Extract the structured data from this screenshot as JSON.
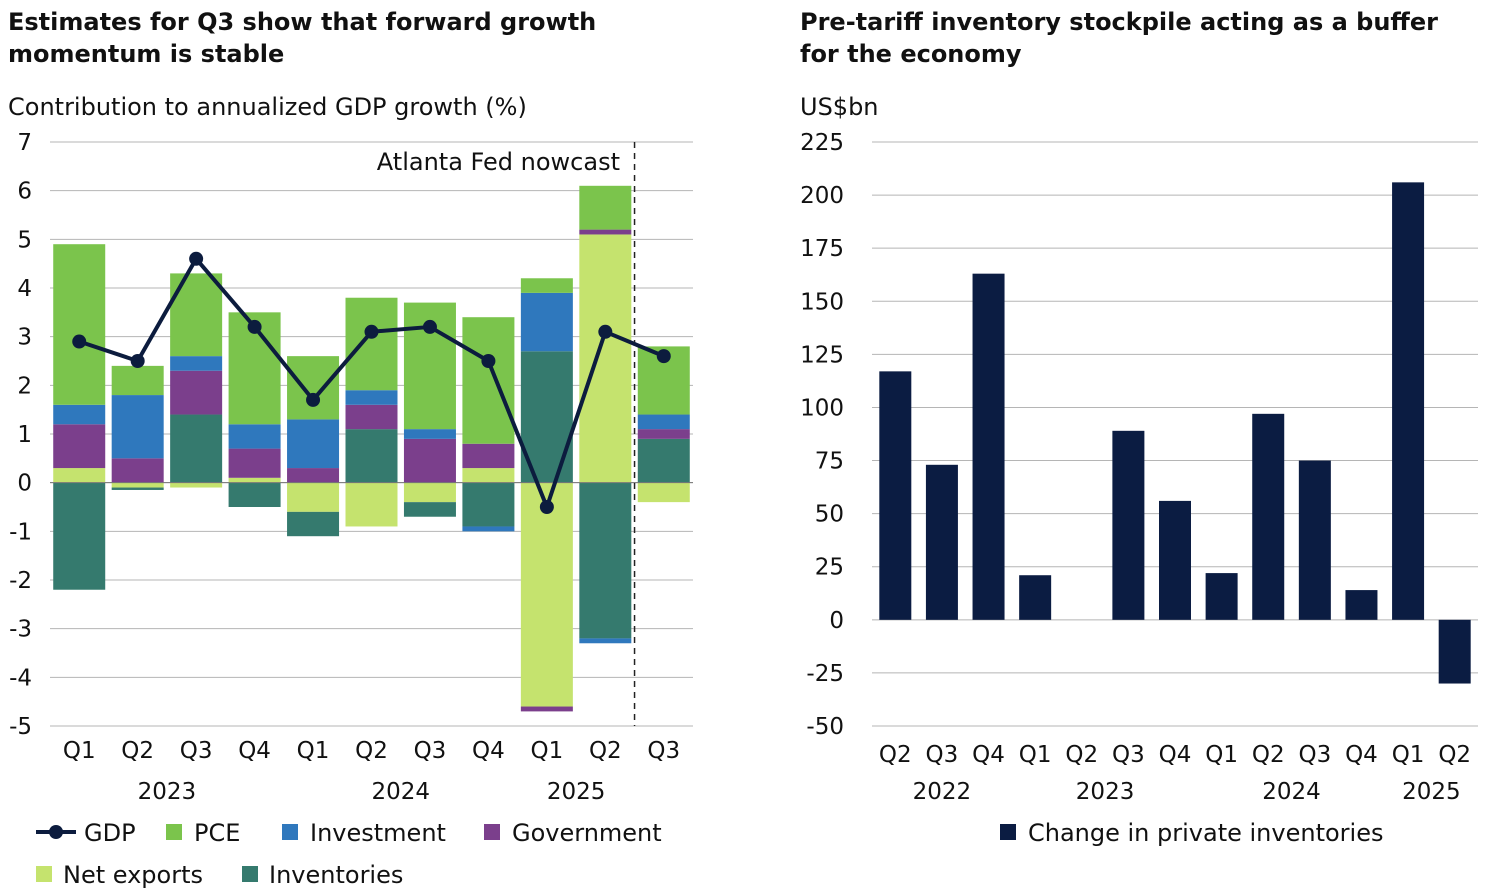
{
  "chart_data": [
    {
      "type": "bar",
      "stacked": true,
      "title": "Estimates for Q3 show that forward growth momentum is stable",
      "title_lines": [
        "Estimates for Q3 show that forward growth",
        "momentum is stable"
      ],
      "ylabel": "Contribution to annualized GDP growth (%)",
      "ylim": [
        -5,
        7
      ],
      "yticks": [
        7,
        6,
        5,
        4,
        3,
        2,
        1,
        0,
        -1,
        -2,
        -3,
        -4,
        -5
      ],
      "categories": [
        "Q1",
        "Q2",
        "Q3",
        "Q4",
        "Q1",
        "Q2",
        "Q3",
        "Q4",
        "Q1",
        "Q2",
        "Q3"
      ],
      "year_labels": [
        {
          "label": "2023",
          "start": 0,
          "end": 3
        },
        {
          "label": "2024",
          "start": 4,
          "end": 7
        },
        {
          "label": "2025",
          "start": 8,
          "end": 9
        }
      ],
      "annotation": "Atlanta Fed nowcast",
      "nowcast_divider_after_index": 9,
      "series": [
        {
          "name": "Net exports",
          "color": "#c5e36e",
          "values": [
            0.3,
            -0.1,
            -0.1,
            0.1,
            -0.6,
            -0.9,
            -0.4,
            0.3,
            -4.6,
            5.1,
            -0.4
          ]
        },
        {
          "name": "Inventories",
          "color": "#357a6e",
          "values": [
            -2.2,
            -0.05,
            1.4,
            -0.5,
            -0.5,
            1.1,
            -0.3,
            -0.9,
            2.7,
            -3.2,
            0.9
          ]
        },
        {
          "name": "Government",
          "color": "#7b3f8c",
          "values": [
            0.9,
            0.5,
            0.9,
            0.6,
            0.3,
            0.5,
            0.9,
            0.5,
            -0.1,
            0.1,
            0.2
          ]
        },
        {
          "name": "Investment",
          "color": "#2f78bd",
          "values": [
            0.4,
            1.3,
            0.3,
            0.5,
            1.0,
            0.3,
            0.2,
            -0.1,
            1.2,
            -0.1,
            0.3
          ]
        },
        {
          "name": "PCE",
          "color": "#7bc44c",
          "values": [
            3.3,
            0.6,
            1.7,
            2.3,
            1.3,
            1.9,
            2.6,
            2.6,
            0.3,
            0.9,
            1.4
          ]
        }
      ],
      "line_series": {
        "name": "GDP",
        "color": "#0c1c3e",
        "values": [
          2.9,
          2.5,
          4.6,
          3.2,
          1.7,
          3.1,
          3.2,
          2.5,
          -0.5,
          3.1,
          2.6
        ]
      },
      "legend": [
        "GDP",
        "PCE",
        "Investment",
        "Government",
        "Net exports",
        "Inventories"
      ],
      "legend_position": "bottom"
    },
    {
      "type": "bar",
      "title": "Pre-tariff inventory stockpile acting as a buffer for the economy",
      "title_lines": [
        "Pre-tariff inventory stockpile acting as a buffer",
        "for the economy"
      ],
      "ylabel": "US$bn",
      "ylim": [
        -50,
        225
      ],
      "yticks": [
        225,
        200,
        175,
        150,
        125,
        100,
        75,
        50,
        25,
        0,
        -25,
        -50
      ],
      "categories": [
        "Q2",
        "Q3",
        "Q4",
        "Q1",
        "Q2",
        "Q3",
        "Q4",
        "Q1",
        "Q2",
        "Q3",
        "Q4",
        "Q1",
        "Q2"
      ],
      "year_labels": [
        {
          "label": "2022",
          "start": 0,
          "end": 2
        },
        {
          "label": "2023",
          "start": 3,
          "end": 6
        },
        {
          "label": "2024",
          "start": 7,
          "end": 10
        },
        {
          "label": "2025",
          "start": 11,
          "end": 12
        }
      ],
      "series": [
        {
          "name": "Change in private inventories",
          "color": "#0b1c42",
          "values": [
            117,
            73,
            163,
            21,
            0,
            89,
            56,
            22,
            97,
            75,
            14,
            206,
            -30
          ]
        }
      ],
      "legend": [
        "Change in private inventories"
      ],
      "legend_position": "bottom"
    }
  ]
}
